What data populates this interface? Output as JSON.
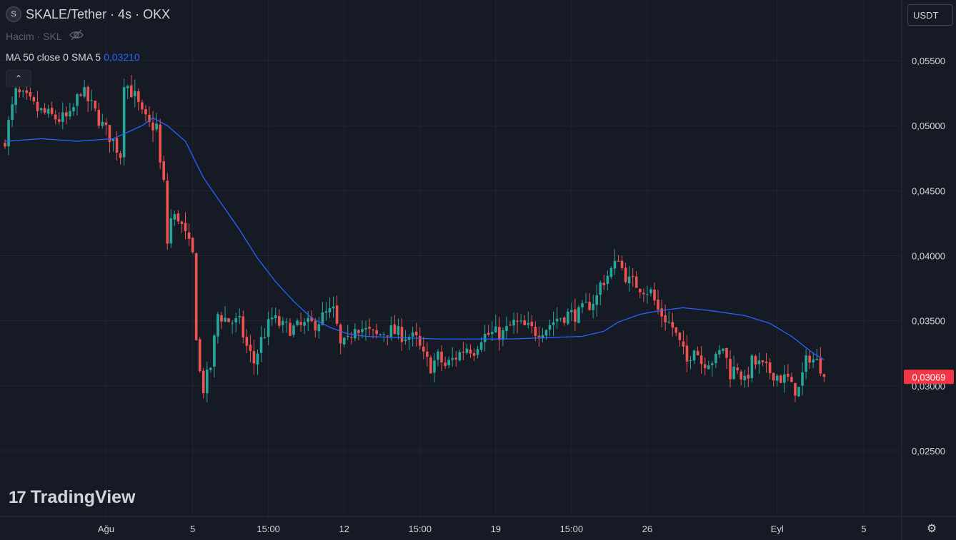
{
  "header": {
    "logo_letter": "S",
    "title": "SKALE/Tether · 4s · OKX"
  },
  "volume": {
    "label": "Hacim · SKL",
    "icon": "eye-off-icon"
  },
  "indicator": {
    "label": "MA 50 close 0 SMA 5",
    "value": "0,03210"
  },
  "controls": {
    "collapse_glyph": "⌃",
    "currency": "USDT",
    "settings_glyph": "⚙"
  },
  "branding": {
    "mark": "17",
    "name": "TradingView"
  },
  "colors": {
    "up": "#26a69a",
    "down": "#ef5350",
    "ma": "#2962ff",
    "last_price_bg": "#f23645",
    "background": "#161a25",
    "grid": "#222631"
  },
  "chart_data": {
    "type": "candlestick",
    "y_ticks": [
      "0,05500",
      "0,05000",
      "0,04500",
      "0,04000",
      "0,03500",
      "0,03000",
      "0,02500"
    ],
    "y_values": [
      0.055,
      0.05,
      0.045,
      0.04,
      0.035,
      0.03,
      0.025
    ],
    "ylim": [
      0.0205,
      0.0585
    ],
    "x_ticks": [
      {
        "label": "Ağu",
        "index": 28
      },
      {
        "label": "5",
        "index": 52
      },
      {
        "label": "15:00",
        "index": 73
      },
      {
        "label": "12",
        "index": 94
      },
      {
        "label": "15:00",
        "index": 115
      },
      {
        "label": "19",
        "index": 136
      },
      {
        "label": "15:00",
        "index": 157
      },
      {
        "label": "26",
        "index": 178
      },
      {
        "label": "Eyl",
        "index": 214
      },
      {
        "label": "5",
        "index": 238
      }
    ],
    "last_price": "0,03069",
    "last_price_value": 0.03069,
    "close_waypoints": [
      [
        0,
        0.049
      ],
      [
        3,
        0.0525
      ],
      [
        6,
        0.052
      ],
      [
        9,
        0.0512
      ],
      [
        12,
        0.0508
      ],
      [
        15,
        0.0505
      ],
      [
        18,
        0.0506
      ],
      [
        21,
        0.0528
      ],
      [
        24,
        0.0515
      ],
      [
        27,
        0.05
      ],
      [
        30,
        0.0488
      ],
      [
        32,
        0.0478
      ],
      [
        33,
        0.0535
      ],
      [
        36,
        0.0522
      ],
      [
        38,
        0.0508
      ],
      [
        40,
        0.05
      ],
      [
        42,
        0.05
      ],
      [
        43,
        0.047
      ],
      [
        44,
        0.0455
      ],
      [
        45,
        0.041
      ],
      [
        46,
        0.0428
      ],
      [
        48,
        0.043
      ],
      [
        50,
        0.0415
      ],
      [
        52,
        0.04
      ],
      [
        53,
        0.034
      ],
      [
        54,
        0.031
      ],
      [
        55,
        0.0298
      ],
      [
        57,
        0.0315
      ],
      [
        59,
        0.0355
      ],
      [
        62,
        0.035
      ],
      [
        65,
        0.0348
      ],
      [
        67,
        0.033
      ],
      [
        69,
        0.0318
      ],
      [
        71,
        0.0335
      ],
      [
        74,
        0.0352
      ],
      [
        77,
        0.0345
      ],
      [
        80,
        0.0344
      ],
      [
        83,
        0.0346
      ],
      [
        86,
        0.0348
      ],
      [
        89,
        0.0355
      ],
      [
        91,
        0.0357
      ],
      [
        92,
        0.0345
      ],
      [
        93,
        0.033
      ],
      [
        95,
        0.0333
      ],
      [
        97,
        0.0348
      ],
      [
        100,
        0.0342
      ],
      [
        103,
        0.0338
      ],
      [
        106,
        0.0343
      ],
      [
        109,
        0.034
      ],
      [
        112,
        0.0338
      ],
      [
        114,
        0.0335
      ],
      [
        116,
        0.0322
      ],
      [
        118,
        0.0315
      ],
      [
        120,
        0.0322
      ],
      [
        122,
        0.0315
      ],
      [
        124,
        0.032
      ],
      [
        126,
        0.0325
      ],
      [
        128,
        0.033
      ],
      [
        130,
        0.0328
      ],
      [
        132,
        0.0338
      ],
      [
        135,
        0.034
      ],
      [
        138,
        0.034
      ],
      [
        141,
        0.0348
      ],
      [
        144,
        0.0345
      ],
      [
        147,
        0.0342
      ],
      [
        150,
        0.0345
      ],
      [
        153,
        0.0352
      ],
      [
        156,
        0.0355
      ],
      [
        159,
        0.0355
      ],
      [
        162,
        0.0363
      ],
      [
        164,
        0.0368
      ],
      [
        165,
        0.0378
      ],
      [
        167,
        0.0385
      ],
      [
        169,
        0.0392
      ],
      [
        170,
        0.04
      ],
      [
        171,
        0.039
      ],
      [
        173,
        0.038
      ],
      [
        175,
        0.0378
      ],
      [
        177,
        0.0375
      ],
      [
        179,
        0.0372
      ],
      [
        181,
        0.0358
      ],
      [
        183,
        0.0352
      ],
      [
        185,
        0.0345
      ],
      [
        187,
        0.0332
      ],
      [
        189,
        0.0318
      ],
      [
        191,
        0.0332
      ],
      [
        193,
        0.0318
      ],
      [
        195,
        0.032
      ],
      [
        197,
        0.032
      ],
      [
        199,
        0.033
      ],
      [
        201,
        0.031
      ],
      [
        203,
        0.0315
      ],
      [
        205,
        0.0302
      ],
      [
        207,
        0.0318
      ],
      [
        209,
        0.0316
      ],
      [
        211,
        0.0312
      ],
      [
        213,
        0.031
      ],
      [
        215,
        0.0306
      ],
      [
        217,
        0.0305
      ],
      [
        218,
        0.0298
      ],
      [
        220,
        0.0297
      ],
      [
        221,
        0.0308
      ],
      [
        222,
        0.0318
      ],
      [
        223,
        0.0323
      ],
      [
        224,
        0.032
      ],
      [
        225,
        0.0318
      ],
      [
        226,
        0.0315
      ],
      [
        227,
        0.0307
      ]
    ],
    "ma_waypoints": [
      [
        0,
        0.0488
      ],
      [
        10,
        0.049
      ],
      [
        20,
        0.0488
      ],
      [
        30,
        0.049
      ],
      [
        34,
        0.0495
      ],
      [
        38,
        0.05
      ],
      [
        41,
        0.0506
      ],
      [
        45,
        0.05
      ],
      [
        50,
        0.0488
      ],
      [
        55,
        0.046
      ],
      [
        60,
        0.044
      ],
      [
        65,
        0.042
      ],
      [
        70,
        0.0398
      ],
      [
        75,
        0.038
      ],
      [
        80,
        0.0365
      ],
      [
        85,
        0.0352
      ],
      [
        90,
        0.0345
      ],
      [
        95,
        0.034
      ],
      [
        100,
        0.0338
      ],
      [
        110,
        0.0337
      ],
      [
        120,
        0.0336
      ],
      [
        130,
        0.0336
      ],
      [
        140,
        0.0336
      ],
      [
        150,
        0.0337
      ],
      [
        160,
        0.0338
      ],
      [
        166,
        0.0342
      ],
      [
        170,
        0.0349
      ],
      [
        176,
        0.0355
      ],
      [
        182,
        0.0358
      ],
      [
        188,
        0.036
      ],
      [
        195,
        0.0358
      ],
      [
        205,
        0.0354
      ],
      [
        212,
        0.0348
      ],
      [
        218,
        0.0338
      ],
      [
        224,
        0.0325
      ],
      [
        227,
        0.032
      ]
    ]
  }
}
